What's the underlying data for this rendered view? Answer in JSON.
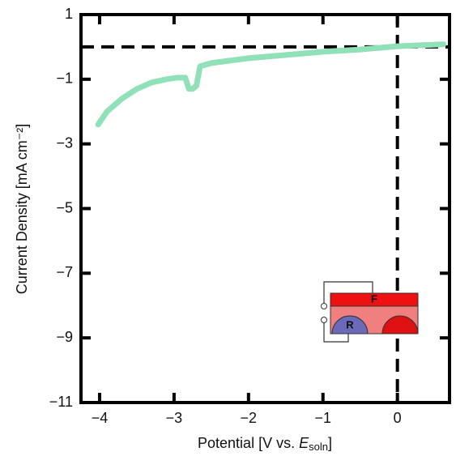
{
  "chart_data": {
    "type": "line",
    "x_label_parts": [
      "Potential [V vs. ",
      "E",
      "soln",
      "]"
    ],
    "y_label": "Current Density [mA cm⁻²]",
    "xlim": [
      -4.25,
      0.7
    ],
    "ylim": [
      -11,
      1
    ],
    "xticks": [
      {
        "value": -4,
        "label": "−4"
      },
      {
        "value": -3,
        "label": "−3"
      },
      {
        "value": -2,
        "label": "−2"
      },
      {
        "value": -1,
        "label": "−1"
      },
      0
    ],
    "yticks": [
      1,
      {
        "value": -1,
        "label": "−1"
      },
      {
        "value": -3,
        "label": "−3"
      },
      {
        "value": -5,
        "label": "−5"
      },
      {
        "value": -7,
        "label": "−7"
      },
      {
        "value": -9,
        "label": "−9"
      },
      {
        "value": -11,
        "label": "−11"
      }
    ],
    "hlines": [
      0
    ],
    "vlines": [
      0
    ],
    "series": [
      {
        "color": "#90e0b8",
        "x": [
          -4.02,
          -3.9,
          -3.7,
          -3.5,
          -3.3,
          -3.1,
          -2.95,
          -2.85,
          -2.8,
          -2.75,
          -2.7,
          -2.65,
          -2.5,
          -2.0,
          -1.5,
          -1.0,
          -0.5,
          0,
          0.3,
          0.62
        ],
        "values": [
          -2.4,
          -2.0,
          -1.6,
          -1.3,
          -1.1,
          -1.0,
          -0.95,
          -0.95,
          -1.3,
          -1.3,
          -1.2,
          -0.6,
          -0.5,
          -0.35,
          -0.25,
          -0.15,
          -0.08,
          0.02,
          0.05,
          0.08
        ]
      }
    ],
    "inset_labels": [
      "F",
      "R"
    ]
  }
}
